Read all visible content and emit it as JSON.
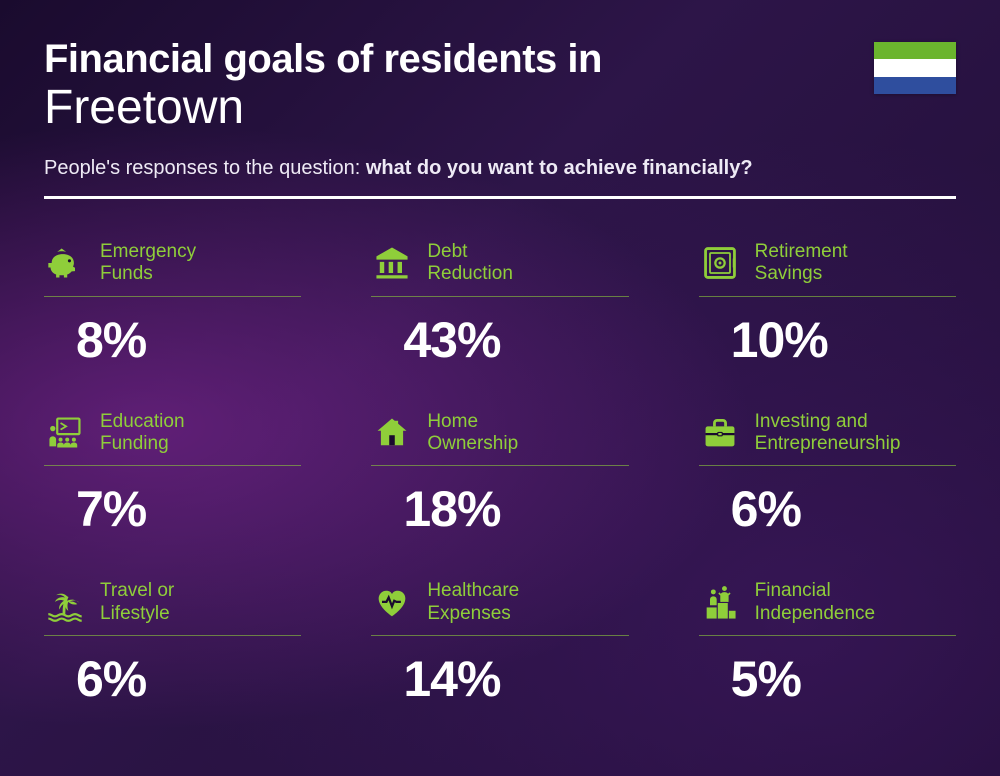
{
  "header": {
    "title_line1": "Financial goals of residents in",
    "title_line2": "Freetown",
    "subtitle_prefix": "People's responses to the question: ",
    "subtitle_bold": "what do you want to achieve financially?"
  },
  "flag": {
    "stripes": [
      "#6bb52e",
      "#ffffff",
      "#2f4e9e"
    ]
  },
  "colors": {
    "accent": "#8fce3a",
    "text": "#ffffff",
    "label": "#8fce3a"
  },
  "items": [
    {
      "icon": "piggy-bank-icon",
      "label_l1": "Emergency",
      "label_l2": "Funds",
      "value": "8%"
    },
    {
      "icon": "bank-icon",
      "label_l1": "Debt",
      "label_l2": "Reduction",
      "value": "43%"
    },
    {
      "icon": "safe-icon",
      "label_l1": "Retirement",
      "label_l2": "Savings",
      "value": "10%"
    },
    {
      "icon": "education-icon",
      "label_l1": "Education",
      "label_l2": "Funding",
      "value": "7%"
    },
    {
      "icon": "house-icon",
      "label_l1": "Home",
      "label_l2": "Ownership",
      "value": "18%"
    },
    {
      "icon": "briefcase-icon",
      "label_l1": "Investing and",
      "label_l2": "Entrepreneurship",
      "value": "6%"
    },
    {
      "icon": "palm-icon",
      "label_l1": "Travel or",
      "label_l2": "Lifestyle",
      "value": "6%"
    },
    {
      "icon": "heart-pulse-icon",
      "label_l1": "Healthcare",
      "label_l2": "Expenses",
      "value": "14%"
    },
    {
      "icon": "podium-icon",
      "label_l1": "Financial",
      "label_l2": "Independence",
      "value": "5%"
    }
  ]
}
